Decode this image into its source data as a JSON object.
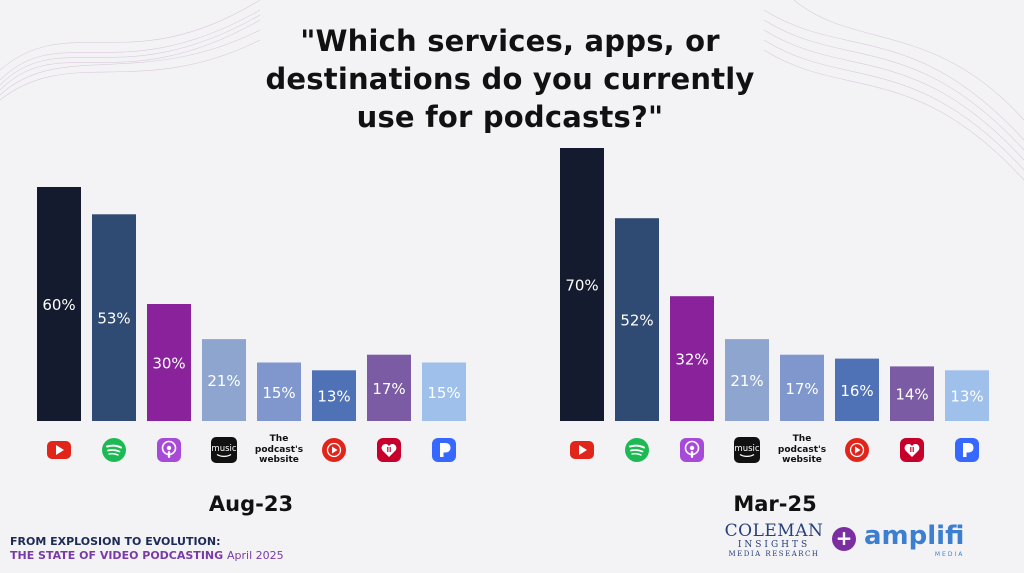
{
  "title": "\"Which services, apps, or destinations do you currently use for podcasts?\"",
  "chart_data": [
    {
      "type": "bar",
      "period": "Aug-23",
      "categories": [
        "YouTube",
        "Spotify",
        "Apple Podcasts",
        "Amazon Music",
        "The podcast's website",
        "YouTube Music",
        "iHeart",
        "Pandora"
      ],
      "values": [
        60,
        53,
        30,
        21,
        15,
        13,
        17,
        15
      ],
      "labels": [
        "60%",
        "53%",
        "30%",
        "21%",
        "15%",
        "13%",
        "17%",
        "15%"
      ],
      "colors": [
        "#141b2e",
        "#2f4a73",
        "#8a229c",
        "#8ea6cf",
        "#7f97cc",
        "#4f71b6",
        "#7c5ba5",
        "#9ec0eb"
      ],
      "ylim": [
        0,
        70
      ]
    },
    {
      "type": "bar",
      "period": "Mar-25",
      "categories": [
        "YouTube",
        "Spotify",
        "Apple Podcasts",
        "Amazon Music",
        "The podcast's website",
        "YouTube Music",
        "iHeart",
        "Pandora"
      ],
      "values": [
        70,
        52,
        32,
        21,
        17,
        16,
        14,
        13
      ],
      "labels": [
        "70%",
        "52%",
        "32%",
        "21%",
        "17%",
        "16%",
        "14%",
        "13%"
      ],
      "colors": [
        "#141b2e",
        "#2f4a73",
        "#8a229c",
        "#8ea6cf",
        "#7f97cc",
        "#4f71b6",
        "#7c5ba5",
        "#9ec0eb"
      ],
      "ylim": [
        0,
        70
      ]
    }
  ],
  "icons": [
    "youtube-icon",
    "spotify-icon",
    "apple-podcasts-icon",
    "amazon-music-icon",
    "website-text",
    "youtube-music-icon",
    "iheart-icon",
    "pandora-icon"
  ],
  "amazon_music_text": "music",
  "website_label": [
    "The",
    "podcast's",
    "website"
  ],
  "footer": {
    "line1": "FROM EXPLOSION TO EVOLUTION:",
    "line2": "THE STATE OF VIDEO PODCASTING",
    "date": "April 2025"
  },
  "logos": {
    "coleman_1": "COLEMAN",
    "coleman_2": "INSIGHTS",
    "coleman_3": "MEDIA RESEARCH",
    "plus": "+",
    "amplifi": "amplifi",
    "amplifi_sub": "MEDIA"
  }
}
